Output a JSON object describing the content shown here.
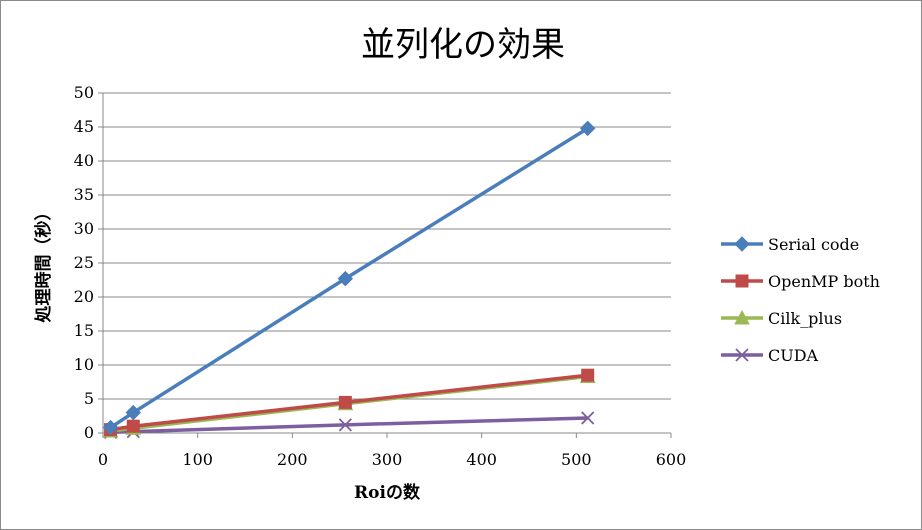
{
  "chart_data": {
    "type": "line",
    "title": "並列化の効果",
    "xlabel": "Roiの数",
    "ylabel": "処理時間（秒）",
    "xlim": [
      0,
      600
    ],
    "ylim": [
      0,
      50
    ],
    "x_ticks": [
      "0",
      "100",
      "200",
      "300",
      "400",
      "500",
      "600"
    ],
    "y_ticks": [
      "0",
      "5",
      "10",
      "15",
      "20",
      "25",
      "30",
      "35",
      "40",
      "45",
      "50"
    ],
    "grid": "horizontal",
    "legend_position": "right",
    "x": [
      8,
      32,
      256,
      512
    ],
    "series": [
      {
        "name": "Serial code",
        "values": [
          0.8,
          3.0,
          22.7,
          44.8
        ],
        "color": "#4a7ebb",
        "marker": "diamond"
      },
      {
        "name": "OpenMP both",
        "values": [
          0.5,
          1.0,
          4.5,
          8.5
        ],
        "color": "#be4b48",
        "marker": "square"
      },
      {
        "name": "Cilk_plus",
        "values": [
          0.3,
          0.7,
          4.3,
          8.3
        ],
        "color": "#98b954",
        "marker": "triangle"
      },
      {
        "name": "CUDA",
        "values": [
          0.1,
          0.2,
          1.2,
          2.2
        ],
        "color": "#7d5fa0",
        "marker": "x"
      }
    ]
  }
}
